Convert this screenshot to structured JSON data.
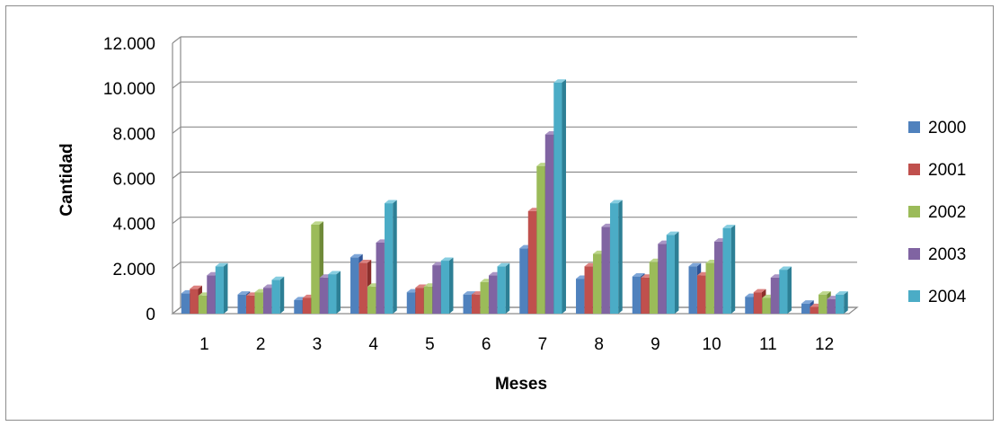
{
  "chart_data": {
    "type": "bar",
    "style": "3d-clustered-column",
    "xlabel": "Meses",
    "ylabel": "Cantidad",
    "categories": [
      "1",
      "2",
      "3",
      "4",
      "5",
      "6",
      "7",
      "8",
      "9",
      "10",
      "11",
      "12"
    ],
    "ylim": [
      0,
      12000
    ],
    "yticks": [
      0,
      2000,
      4000,
      6000,
      8000,
      10000,
      12000
    ],
    "ytick_labels": [
      "0",
      "2.000",
      "4.000",
      "6.000",
      "8.000",
      "10.000",
      "12.000"
    ],
    "grid": true,
    "legend_position": "right",
    "series": [
      {
        "name": "2000",
        "color": "#4f81bd",
        "dark": "#2f5597",
        "light": "#7ea6d8",
        "values": [
          900,
          850,
          600,
          2500,
          950,
          850,
          2900,
          1550,
          1650,
          2100,
          750,
          450
        ]
      },
      {
        "name": "2001",
        "color": "#c0504d",
        "dark": "#8c2f2c",
        "light": "#dc8280",
        "values": [
          1100,
          800,
          700,
          2250,
          1150,
          850,
          4550,
          2100,
          1600,
          1700,
          950,
          300
        ]
      },
      {
        "name": "2002",
        "color": "#9bbb59",
        "dark": "#6f8a38",
        "light": "#bcd68a",
        "values": [
          800,
          950,
          3950,
          1200,
          1200,
          1400,
          6550,
          2650,
          2300,
          2250,
          700,
          850
        ]
      },
      {
        "name": "2003",
        "color": "#8064a2",
        "dark": "#5a4478",
        "light": "#a994c4",
        "values": [
          1700,
          1150,
          1600,
          3150,
          2150,
          1700,
          7950,
          3850,
          3100,
          3200,
          1600,
          650
        ]
      },
      {
        "name": "2004",
        "color": "#4bacc6",
        "dark": "#2d7f95",
        "light": "#86cde0",
        "values": [
          2100,
          1500,
          1750,
          4900,
          2350,
          2100,
          10250,
          4900,
          3500,
          3800,
          1950,
          850
        ]
      }
    ]
  }
}
